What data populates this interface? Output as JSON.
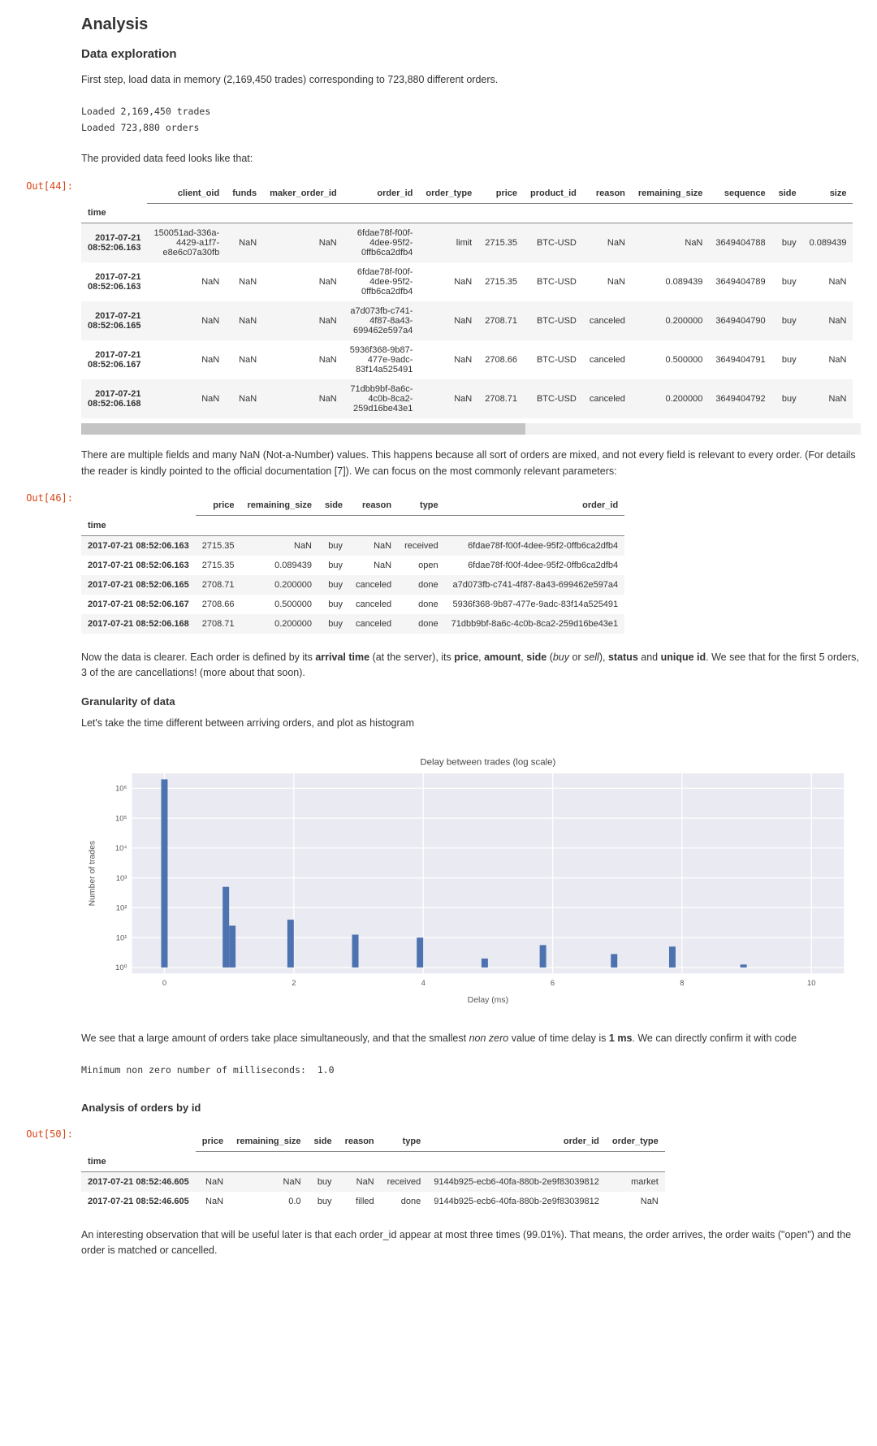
{
  "headings": {
    "analysis": "Analysis",
    "data_exploration": "Data exploration",
    "granularity": "Granularity of data",
    "orders_by_id": "Analysis of orders by id"
  },
  "paras": {
    "intro": "First step, load data in memory (2,169,450 trades) corresponding to 723,880 different orders.",
    "looks_like": "The provided data feed looks like that:",
    "nan_explain_a": "There are multiple fields and many NaN (Not-a-Number) values. This happens because all sort of orders are mixed, and not every field is relevant to every order. (For details the reader is kindly pointed to the official documentation [7]). We can focus on the most commonly relevant parameters:",
    "histogram_intro": "Let's take the time different between arriving orders, and plot as histogram",
    "histogram_conclusion_a": "We see that a large amount of orders take place simultaneously, and that the smallest ",
    "histogram_conclusion_b": " value of time delay is ",
    "histogram_conclusion_c": ". We can directly confirm it with code",
    "order_id_obs": "An interesting observation that will be useful later is that each order_id appear at most three times (99.01%). That means, the order arrives, the order waits (\"open\") and the order is matched or cancelled."
  },
  "rich": {
    "clearer_a": "Now the data is clearer. Each order is defined by its ",
    "arrival_time": "arrival time",
    "clearer_b": " (at the server), its ",
    "price": "price",
    "clearer_c": ", ",
    "amount": "amount",
    "clearer_d": ", ",
    "side": "side",
    "clearer_e": " (",
    "buy": "buy",
    "clearer_f": " or ",
    "sell": "sell",
    "clearer_g": "), ",
    "status": "status",
    "clearer_h": " and ",
    "unique_id": "unique id",
    "clearer_i": ". We see that for the first 5 orders, 3 of the are cancellations! (more about that soon).",
    "nonzero": "non zero",
    "one_ms": "1 ms"
  },
  "streams": {
    "loaded_trades": "Loaded 2,169,450 trades",
    "loaded_orders": "Loaded 723,880 orders",
    "min_ms": "Minimum non zero number of milliseconds:  1.0"
  },
  "prompts": {
    "out44": "Out[44]:",
    "out46": "Out[46]:",
    "out50": "Out[50]:"
  },
  "table1": {
    "index_name": "time",
    "columns": [
      "client_oid",
      "funds",
      "maker_order_id",
      "order_id",
      "order_type",
      "price",
      "product_id",
      "reason",
      "remaining_size",
      "sequence",
      "side",
      "size"
    ],
    "rows": [
      {
        "idx": "2017-07-21 08:52:06.163",
        "cells": [
          "150051ad-336a-4429-a1f7-e8e6c07a30fb",
          "NaN",
          "NaN",
          "6fdae78f-f00f-4dee-95f2-0ffb6ca2dfb4",
          "limit",
          "2715.35",
          "BTC-USD",
          "NaN",
          "NaN",
          "3649404788",
          "buy",
          "0.089439"
        ]
      },
      {
        "idx": "2017-07-21 08:52:06.163",
        "cells": [
          "NaN",
          "NaN",
          "NaN",
          "6fdae78f-f00f-4dee-95f2-0ffb6ca2dfb4",
          "NaN",
          "2715.35",
          "BTC-USD",
          "NaN",
          "0.089439",
          "3649404789",
          "buy",
          "NaN"
        ]
      },
      {
        "idx": "2017-07-21 08:52:06.165",
        "cells": [
          "NaN",
          "NaN",
          "NaN",
          "a7d073fb-c741-4f87-8a43-699462e597a4",
          "NaN",
          "2708.71",
          "BTC-USD",
          "canceled",
          "0.200000",
          "3649404790",
          "buy",
          "NaN"
        ]
      },
      {
        "idx": "2017-07-21 08:52:06.167",
        "cells": [
          "NaN",
          "NaN",
          "NaN",
          "5936f368-9b87-477e-9adc-83f14a525491",
          "NaN",
          "2708.66",
          "BTC-USD",
          "canceled",
          "0.500000",
          "3649404791",
          "buy",
          "NaN"
        ]
      },
      {
        "idx": "2017-07-21 08:52:06.168",
        "cells": [
          "NaN",
          "NaN",
          "NaN",
          "71dbb9bf-8a6c-4c0b-8ca2-259d16be43e1",
          "NaN",
          "2708.71",
          "BTC-USD",
          "canceled",
          "0.200000",
          "3649404792",
          "buy",
          "NaN"
        ]
      }
    ],
    "wrap_cols": {
      "0": 13,
      "3": 14
    },
    "scrollbar_thumb_pct": 57
  },
  "table2": {
    "index_name": "time",
    "columns": [
      "price",
      "remaining_size",
      "side",
      "reason",
      "type",
      "order_id"
    ],
    "rows": [
      {
        "idx": "2017-07-21 08:52:06.163",
        "cells": [
          "2715.35",
          "NaN",
          "buy",
          "NaN",
          "received",
          "6fdae78f-f00f-4dee-95f2-0ffb6ca2dfb4"
        ]
      },
      {
        "idx": "2017-07-21 08:52:06.163",
        "cells": [
          "2715.35",
          "0.089439",
          "buy",
          "NaN",
          "open",
          "6fdae78f-f00f-4dee-95f2-0ffb6ca2dfb4"
        ]
      },
      {
        "idx": "2017-07-21 08:52:06.165",
        "cells": [
          "2708.71",
          "0.200000",
          "buy",
          "canceled",
          "done",
          "a7d073fb-c741-4f87-8a43-699462e597a4"
        ]
      },
      {
        "idx": "2017-07-21 08:52:06.167",
        "cells": [
          "2708.66",
          "0.500000",
          "buy",
          "canceled",
          "done",
          "5936f368-9b87-477e-9adc-83f14a525491"
        ]
      },
      {
        "idx": "2017-07-21 08:52:06.168",
        "cells": [
          "2708.71",
          "0.200000",
          "buy",
          "canceled",
          "done",
          "71dbb9bf-8a6c-4c0b-8ca2-259d16be43e1"
        ]
      }
    ]
  },
  "table3": {
    "index_name": "time",
    "columns": [
      "price",
      "remaining_size",
      "side",
      "reason",
      "type",
      "order_id",
      "order_type"
    ],
    "rows": [
      {
        "idx": "2017-07-21 08:52:46.605",
        "cells": [
          "NaN",
          "NaN",
          "buy",
          "NaN",
          "received",
          "9144b925-ecb6-40fa-880b-2e9f83039812",
          "market"
        ]
      },
      {
        "idx": "2017-07-21 08:52:46.605",
        "cells": [
          "NaN",
          "0.0",
          "buy",
          "filled",
          "done",
          "9144b925-ecb6-40fa-880b-2e9f83039812",
          "NaN"
        ]
      }
    ]
  },
  "chart": {
    "title": "Delay between trades (log scale)",
    "xlabel": "Delay (ms)",
    "ylabel": "Number of trades",
    "plot_bg": "#eaeaf2",
    "bar_color": "#4c72b0",
    "grid_color": "#ffffff",
    "title_fontsize": 11,
    "label_fontsize": 10,
    "tick_fontsize": 9,
    "xlim": [
      -0.5,
      10.5
    ],
    "xticks": [
      0,
      2,
      4,
      6,
      8,
      10
    ],
    "yticks_log": [
      0,
      1,
      2,
      3,
      4,
      5,
      6
    ],
    "ytick_labels": [
      "10⁰",
      "10¹",
      "10²",
      "10³",
      "10⁴",
      "10⁵",
      "10⁶"
    ],
    "bars": [
      {
        "x": 0.0,
        "h": 6.3
      },
      {
        "x": 0.95,
        "h": 2.7
      },
      {
        "x": 1.05,
        "h": 1.4
      },
      {
        "x": 1.95,
        "h": 1.6
      },
      {
        "x": 2.05,
        "h": 0.0
      },
      {
        "x": 2.95,
        "h": 1.1
      },
      {
        "x": 3.95,
        "h": 1.0
      },
      {
        "x": 4.05,
        "h": 0.0
      },
      {
        "x": 4.95,
        "h": 0.3
      },
      {
        "x": 5.85,
        "h": 0.75
      },
      {
        "x": 5.95,
        "h": 0.0
      },
      {
        "x": 6.95,
        "h": 0.45
      },
      {
        "x": 7.85,
        "h": 0.7
      },
      {
        "x": 7.95,
        "h": 0.0
      },
      {
        "x": 8.95,
        "h": 0.1
      }
    ],
    "bar_width": 0.1
  }
}
